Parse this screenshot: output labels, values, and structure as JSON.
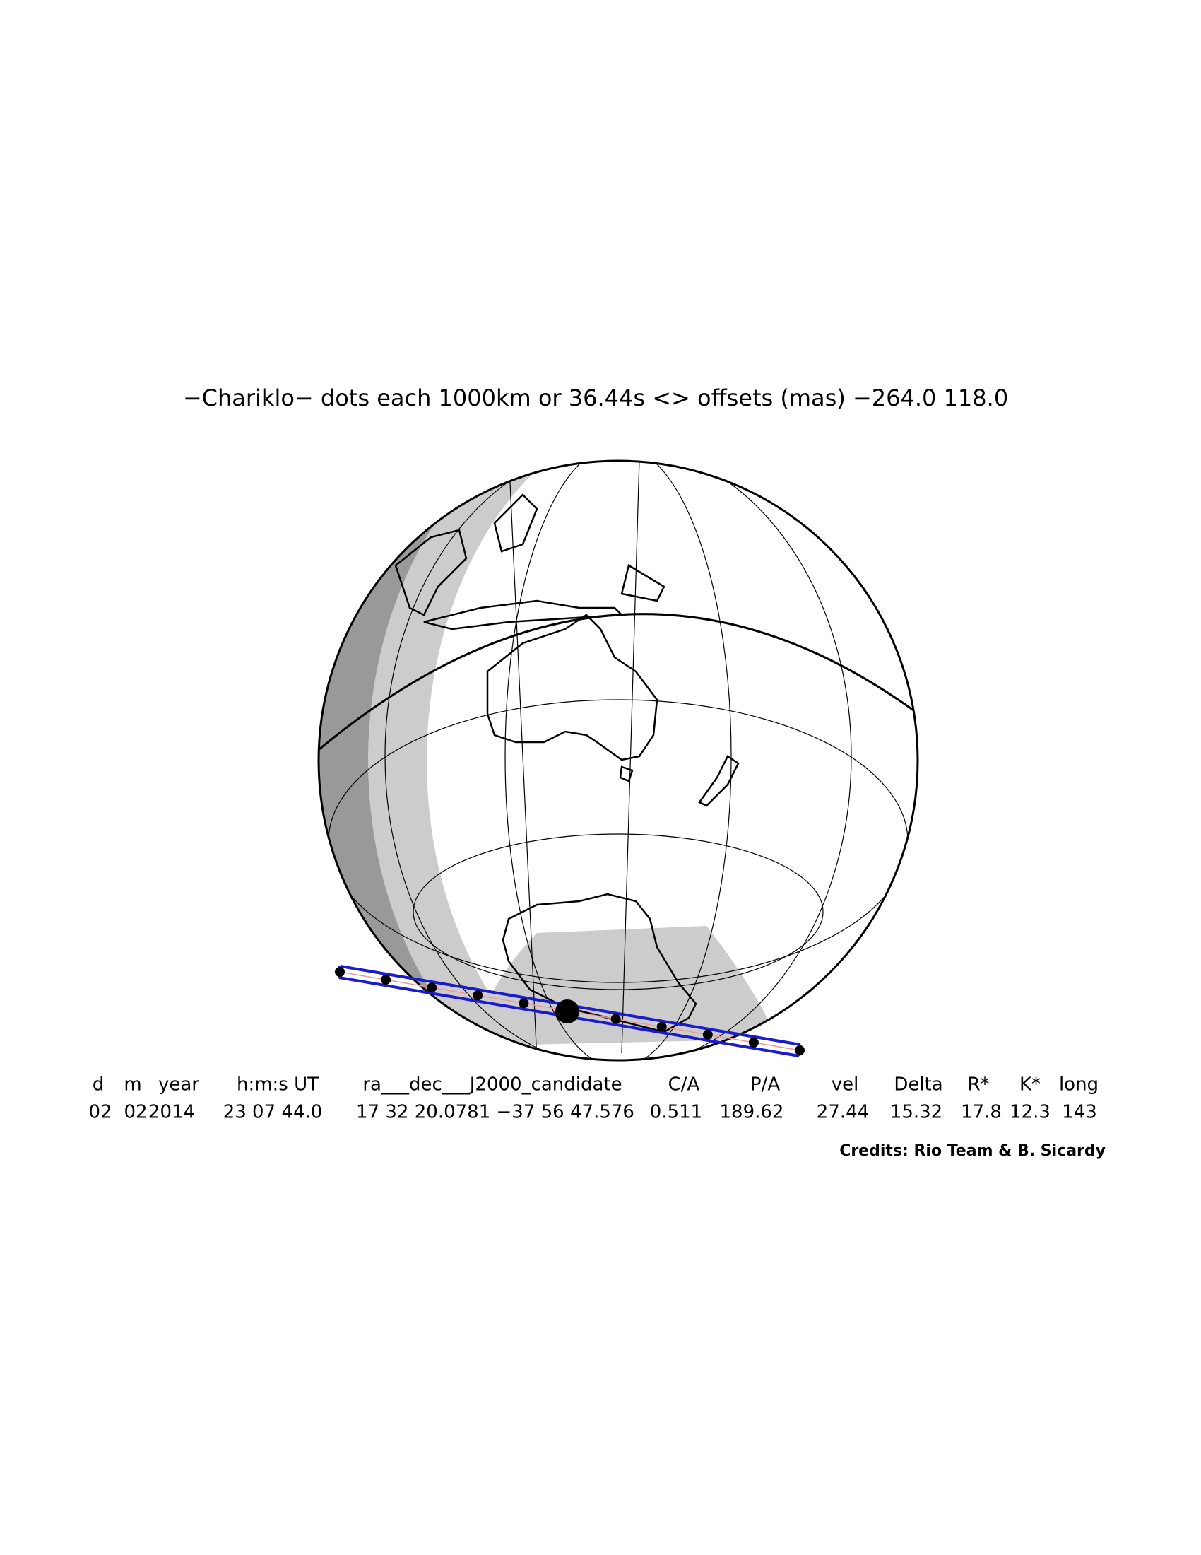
{
  "title": "−Chariklo− dots each 1000km or 36.44s <> offsets (mas) −264.0  118.0",
  "table": {
    "header": [
      "d",
      "m",
      "year",
      "h:m:s UT",
      "ra___dec___J2000_candidate",
      "C/A",
      "P/A",
      "vel",
      "Delta",
      "R*",
      "K*",
      "long"
    ],
    "row": [
      "02",
      "02",
      "2014",
      "23 07 44.0",
      "17 32 20.0781 −37 56 47.576",
      "0.511",
      "189.62",
      "27.44",
      "15.32",
      "17.8",
      "12.3",
      "143"
    ]
  },
  "credits": "Credits: Rio Team & B. Sicardy"
}
